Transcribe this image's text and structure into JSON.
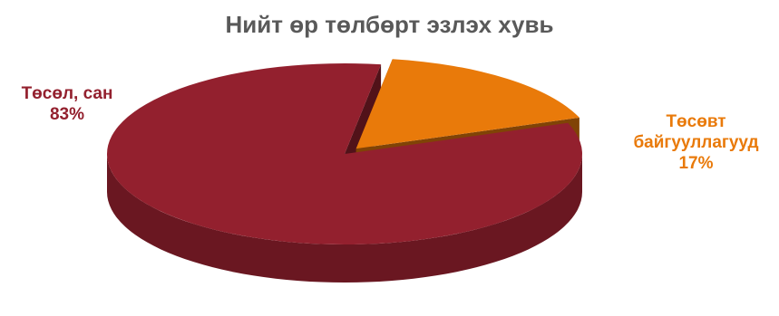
{
  "chart_data": {
    "type": "pie",
    "title": "Нийт өр төлбөрт эзлэх хувь",
    "slices": [
      {
        "name": "Төсөл, сан",
        "value": 83,
        "value_label": "83%",
        "color": "#93202e"
      },
      {
        "name": "Төсөвт байгууллагууд",
        "value": 17,
        "value_label": "17%",
        "color": "#e97a0a"
      }
    ],
    "style": "3d-exploded",
    "legend": "none"
  }
}
